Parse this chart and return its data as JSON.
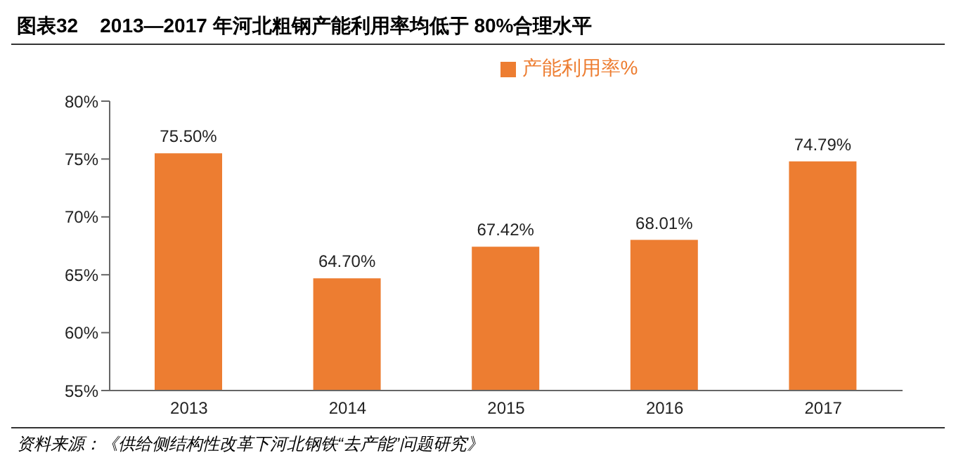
{
  "chart_data": {
    "type": "bar",
    "title": "图表32    2013—2017 年河北粗钢产能利用率均低于 80%合理水平",
    "categories": [
      "2013",
      "2014",
      "2015",
      "2016",
      "2017"
    ],
    "series": [
      {
        "name": "产能利用率%",
        "color": "#ed7d31",
        "values": [
          75.5,
          64.7,
          67.42,
          68.01,
          74.79
        ],
        "value_labels": [
          "75.50%",
          "64.70%",
          "67.42%",
          "68.01%",
          "74.79%"
        ]
      }
    ],
    "ylim": [
      55,
      80
    ],
    "yticks": [
      {
        "value": 55,
        "label": "55%"
      },
      {
        "value": 60,
        "label": "60%"
      },
      {
        "value": 65,
        "label": "65%"
      },
      {
        "value": 70,
        "label": "70%"
      },
      {
        "value": 75,
        "label": "75%"
      },
      {
        "value": 80,
        "label": "80%"
      }
    ],
    "grid": false,
    "legend": "top",
    "annotations": [
      "资料来源：《供给侧结构性改革下河北钢铁“去产能”问题研究》"
    ]
  }
}
